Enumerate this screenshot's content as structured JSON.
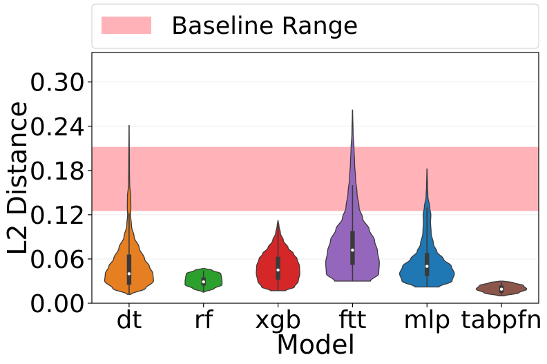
{
  "chart_data": {
    "type": "violin",
    "xlabel": "Model",
    "ylabel": "L2 Distance",
    "ylim": [
      0,
      0.34
    ],
    "yticks": [
      0.0,
      0.06,
      0.12,
      0.18,
      0.24,
      0.3
    ],
    "ytick_labels": [
      "0.00",
      "0.06",
      "0.12",
      "0.18",
      "0.24",
      "0.30"
    ],
    "grid": true,
    "baseline_range": {
      "label": "Baseline Range",
      "low": 0.125,
      "high": 0.212,
      "color": "#ffb3b8"
    },
    "legend": {
      "placement": "top",
      "entries": [
        "Baseline Range"
      ]
    },
    "series": [
      {
        "name": "dt",
        "color": "#e67e22",
        "min": 0.012,
        "max": 0.241,
        "q1": 0.025,
        "median": 0.04,
        "q3": 0.066,
        "whisker_low": 0.012,
        "whisker_high": 0.122,
        "profile": [
          [
            0.012,
            0.06
          ],
          [
            0.02,
            0.55
          ],
          [
            0.03,
            0.82
          ],
          [
            0.04,
            0.8
          ],
          [
            0.05,
            0.68
          ],
          [
            0.06,
            0.52
          ],
          [
            0.075,
            0.34
          ],
          [
            0.09,
            0.17
          ],
          [
            0.105,
            0.08
          ],
          [
            0.12,
            0.05
          ],
          [
            0.13,
            0.06
          ],
          [
            0.145,
            0.055
          ],
          [
            0.16,
            0.02
          ],
          [
            0.18,
            0.012
          ],
          [
            0.241,
            0.004
          ]
        ]
      },
      {
        "name": "rf",
        "color": "#2ca02c",
        "min": 0.015,
        "max": 0.047,
        "q1": 0.024,
        "median": 0.029,
        "q3": 0.035,
        "whisker_low": 0.016,
        "whisker_high": 0.044,
        "profile": [
          [
            0.015,
            0.02
          ],
          [
            0.02,
            0.36
          ],
          [
            0.025,
            0.62
          ],
          [
            0.03,
            0.62
          ],
          [
            0.035,
            0.6
          ],
          [
            0.04,
            0.58
          ],
          [
            0.045,
            0.28
          ],
          [
            0.047,
            0.05
          ]
        ]
      },
      {
        "name": "xgb",
        "color": "#d62728",
        "min": 0.017,
        "max": 0.112,
        "q1": 0.032,
        "median": 0.045,
        "q3": 0.063,
        "whisker_low": 0.018,
        "whisker_high": 0.105,
        "profile": [
          [
            0.017,
            0.25
          ],
          [
            0.022,
            0.55
          ],
          [
            0.03,
            0.68
          ],
          [
            0.04,
            0.73
          ],
          [
            0.05,
            0.72
          ],
          [
            0.06,
            0.64
          ],
          [
            0.067,
            0.52
          ],
          [
            0.075,
            0.34
          ],
          [
            0.085,
            0.18
          ],
          [
            0.095,
            0.08
          ],
          [
            0.105,
            0.03
          ],
          [
            0.112,
            0.005
          ]
        ]
      },
      {
        "name": "ftt",
        "color": "#9467bd",
        "min": 0.03,
        "max": 0.262,
        "q1": 0.052,
        "median": 0.072,
        "q3": 0.098,
        "whisker_low": 0.03,
        "whisker_high": 0.16,
        "profile": [
          [
            0.03,
            0.6
          ],
          [
            0.04,
            0.88
          ],
          [
            0.055,
            0.9
          ],
          [
            0.07,
            0.84
          ],
          [
            0.085,
            0.74
          ],
          [
            0.1,
            0.56
          ],
          [
            0.115,
            0.34
          ],
          [
            0.13,
            0.22
          ],
          [
            0.15,
            0.15
          ],
          [
            0.17,
            0.1
          ],
          [
            0.19,
            0.07
          ],
          [
            0.21,
            0.05
          ],
          [
            0.23,
            0.02
          ],
          [
            0.262,
            0.004
          ]
        ]
      },
      {
        "name": "mlp",
        "color": "#1f77b4",
        "min": 0.022,
        "max": 0.182,
        "q1": 0.037,
        "median": 0.05,
        "q3": 0.068,
        "whisker_low": 0.022,
        "whisker_high": 0.13,
        "profile": [
          [
            0.022,
            0.4
          ],
          [
            0.03,
            0.84
          ],
          [
            0.04,
            0.92
          ],
          [
            0.05,
            0.82
          ],
          [
            0.06,
            0.55
          ],
          [
            0.07,
            0.33
          ],
          [
            0.08,
            0.22
          ],
          [
            0.095,
            0.14
          ],
          [
            0.11,
            0.12
          ],
          [
            0.12,
            0.13
          ],
          [
            0.13,
            0.09
          ],
          [
            0.145,
            0.03
          ],
          [
            0.16,
            0.015
          ],
          [
            0.182,
            0.004
          ]
        ]
      },
      {
        "name": "tabpfn",
        "color": "#8c564b",
        "min": 0.01,
        "max": 0.03,
        "q1": 0.014,
        "median": 0.019,
        "q3": 0.024,
        "whisker_low": 0.011,
        "whisker_high": 0.029,
        "profile": [
          [
            0.01,
            0.1
          ],
          [
            0.014,
            0.58
          ],
          [
            0.019,
            0.85
          ],
          [
            0.024,
            0.74
          ],
          [
            0.028,
            0.4
          ],
          [
            0.03,
            0.06
          ]
        ]
      }
    ]
  }
}
